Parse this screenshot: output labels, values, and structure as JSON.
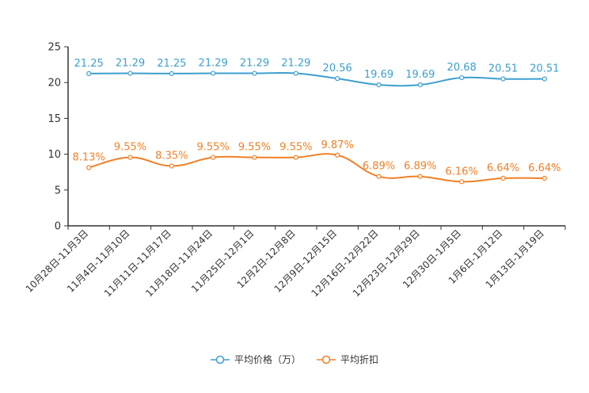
{
  "chart_data": {
    "type": "line",
    "categories": [
      "10月28日-11月3日",
      "11月4日-11月10日",
      "11月11日-11月17日",
      "11月18日-11月24日",
      "11月25日-12月1日",
      "12月2日-12月8日",
      "12月9日-12月15日",
      "12月16日-12月22日",
      "12月23日-12月29日",
      "12月30日-1月5日",
      "1月6日-1月12日",
      "1月13日-1月19日"
    ],
    "series": [
      {
        "name": "平均价格（万）",
        "color": "#3d9fd0",
        "values": [
          21.25,
          21.29,
          21.25,
          21.29,
          21.29,
          21.29,
          20.56,
          19.69,
          19.69,
          20.68,
          20.51,
          20.51
        ],
        "labels": [
          "21.25",
          "21.29",
          "21.25",
          "21.29",
          "21.29",
          "21.29",
          "20.56",
          "19.69",
          "19.69",
          "20.68",
          "20.51",
          "20.51"
        ]
      },
      {
        "name": "平均折扣",
        "color": "#f28026",
        "values": [
          8.13,
          9.55,
          8.35,
          9.55,
          9.55,
          9.55,
          9.87,
          6.89,
          6.89,
          6.16,
          6.64,
          6.64
        ],
        "labels": [
          "8.13%",
          "9.55%",
          "8.35%",
          "9.55%",
          "9.55%",
          "9.55%",
          "9.87%",
          "6.89%",
          "6.89%",
          "6.16%",
          "6.64%",
          "6.64%"
        ]
      }
    ],
    "yticks": [
      "0",
      "5",
      "10",
      "15",
      "20",
      "25"
    ],
    "ylim": [
      0,
      25
    ],
    "legend_position": "bottom-center",
    "grid": false
  }
}
